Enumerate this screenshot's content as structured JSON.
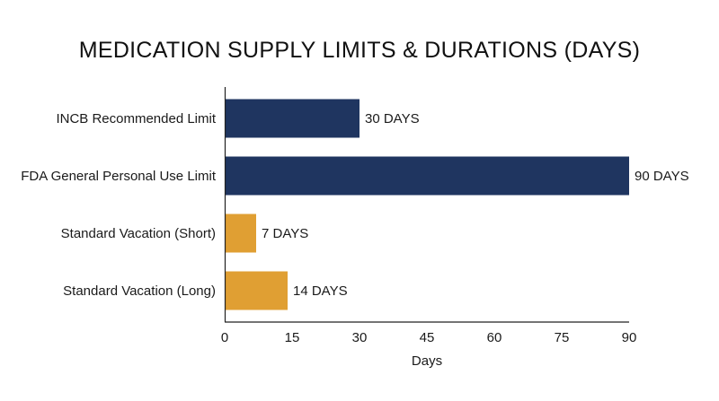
{
  "chart_data": {
    "type": "bar",
    "orientation": "horizontal",
    "title": "MEDICATION SUPPLY LIMITS & DURATIONS (DAYS)",
    "xlabel": "Days",
    "ylabel": "",
    "xlim": [
      0,
      90
    ],
    "xticks": [
      0,
      15,
      30,
      45,
      60,
      75,
      90
    ],
    "grid": false,
    "categories": [
      "INCB Recommended Limit",
      "FDA General Personal Use Limit",
      "Standard Vacation (Short)",
      "Standard Vacation (Long)"
    ],
    "values": [
      30,
      90,
      7,
      14
    ],
    "data_labels": [
      "30 DAYS",
      "90 DAYS",
      "7 DAYS",
      "14 DAYS"
    ],
    "colors": [
      "#1f3560",
      "#1f3560",
      "#e09f33",
      "#e09f33"
    ]
  }
}
